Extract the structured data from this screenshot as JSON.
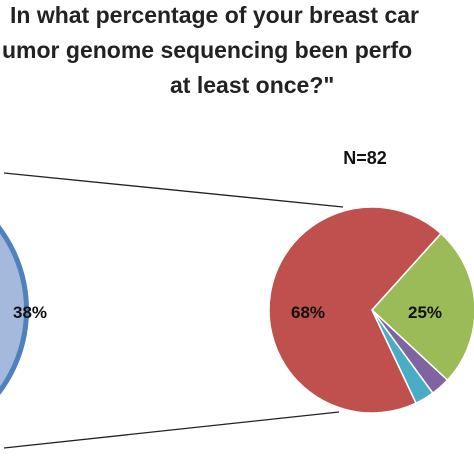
{
  "chart_data": {
    "type": "pie",
    "title_lines": [
      "In what percentage of your breast car",
      "umor genome sequencing been perfo",
      "at least once?\""
    ],
    "n_label": "N=82",
    "main_pie": {
      "slices": [
        {
          "label": "38%",
          "value": 38,
          "color": "#a5b9dc"
        },
        {
          "label": "",
          "color": "#4f81bd"
        }
      ]
    },
    "detail_pie": {
      "slices": [
        {
          "label": "68%",
          "value": 68,
          "color": "#c0504d"
        },
        {
          "label": "25%",
          "value": 25,
          "color": "#9bbb59"
        },
        {
          "label": "",
          "value": 3,
          "color": "#8064a2"
        },
        {
          "label": "",
          "value": 3,
          "color": "#4bacc6"
        }
      ]
    },
    "connector_color": "#222222"
  }
}
